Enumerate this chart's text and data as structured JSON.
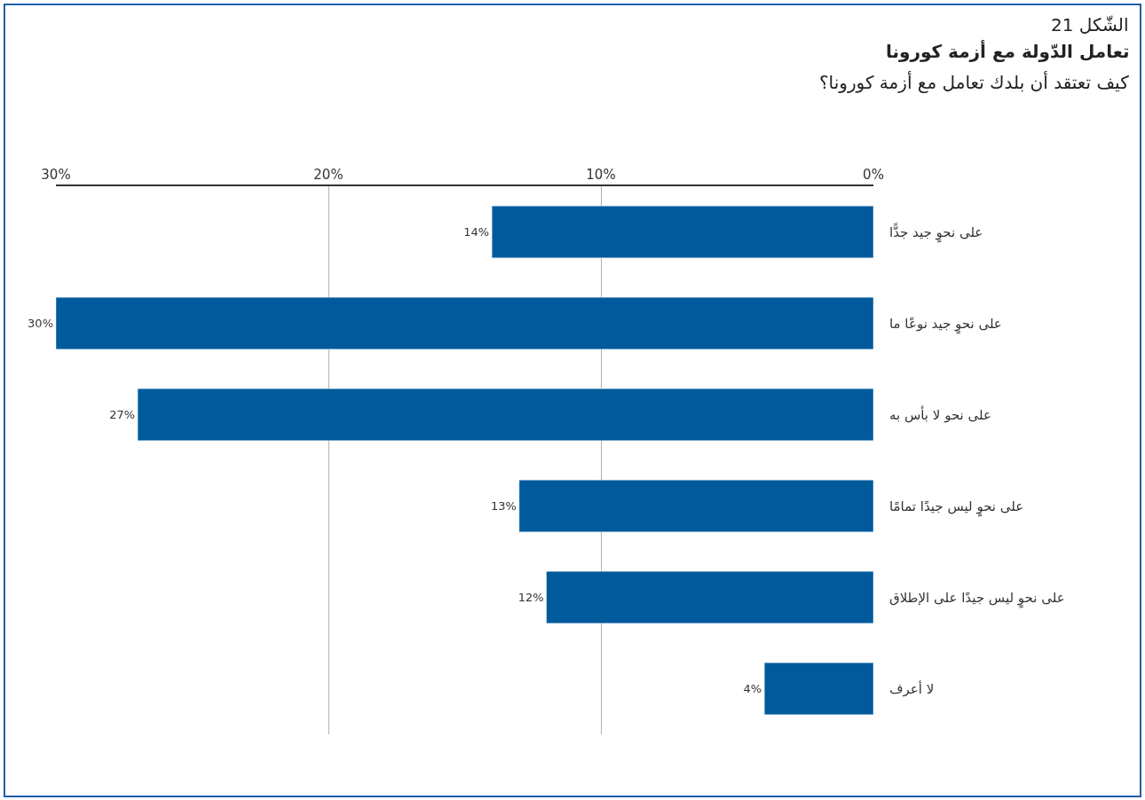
{
  "chart_data": {
    "type": "bar",
    "orientation": "horizontal",
    "title": "الشّكل 21",
    "subtitle": "تعامل الدّولة مع أزمة كورونا",
    "annotations": [
      "كيف تعتقد أن بلدك تعامل مع أزمة كورونا؟"
    ],
    "categories": [
      "على نحوٍ جيد جدًّا",
      "على نحوٍ جيد نوعًا ما",
      "على نحو لا بأس به",
      "على نحوٍ ليس جيدًا تمامًا",
      "على نحوٍ ليس جيدًا على الإطلاق",
      "لا أعرف"
    ],
    "values": [
      14,
      30,
      27,
      13,
      12,
      4
    ],
    "value_labels": [
      "14%",
      "30%",
      "27%",
      "13%",
      "12%",
      "4%"
    ],
    "color": "#005a9c",
    "xlim": [
      30,
      0
    ],
    "xticks": [
      {
        "value": 30,
        "label": "30%"
      },
      {
        "value": 20,
        "label": "20%"
      },
      {
        "value": 10,
        "label": "10%"
      },
      {
        "value": 0,
        "label": "0%"
      }
    ],
    "grid": "x"
  }
}
